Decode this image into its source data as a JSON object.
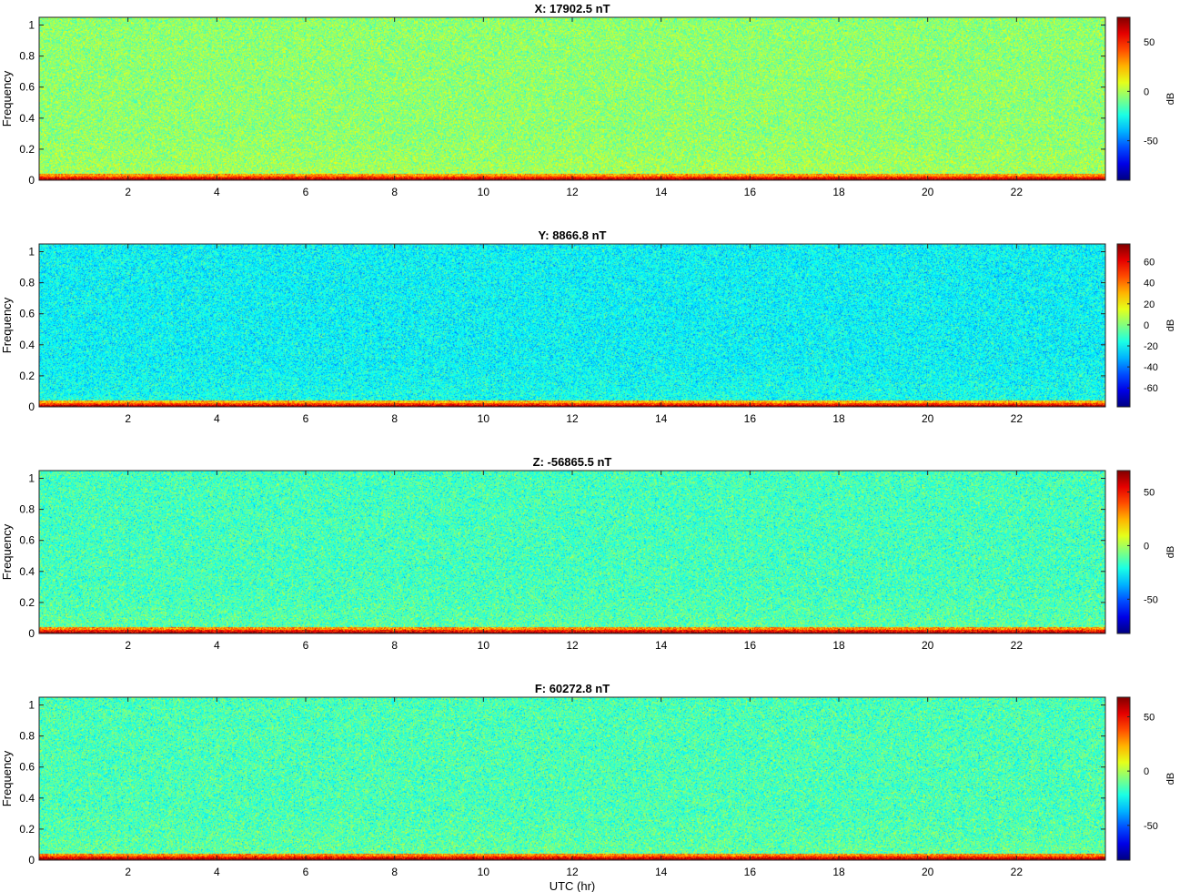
{
  "chart_data": [
    {
      "type": "heatmap",
      "title": "X: 17902.5 nT",
      "xlabel": "",
      "ylabel": "Frequency",
      "xticks": [
        2,
        4,
        6,
        8,
        10,
        12,
        14,
        16,
        18,
        20,
        22
      ],
      "yticks": [
        0,
        0.2,
        0.4,
        0.6,
        0.8,
        1
      ],
      "xlim": [
        0,
        24
      ],
      "ylim": [
        0,
        1.05
      ],
      "colorbar": {
        "label": "dB",
        "ticks": [
          -50,
          0,
          50
        ],
        "range": [
          -90,
          75
        ]
      },
      "colormap": "jet",
      "approx_levels_db": {
        "background": -5,
        "low_freq_band": 30,
        "lowest_freq": 70
      }
    },
    {
      "type": "heatmap",
      "title": "Y: 8866.8 nT",
      "xlabel": "",
      "ylabel": "Frequency",
      "xticks": [
        2,
        4,
        6,
        8,
        10,
        12,
        14,
        16,
        18,
        20,
        22
      ],
      "yticks": [
        0,
        0.2,
        0.4,
        0.6,
        0.8,
        1
      ],
      "xlim": [
        0,
        24
      ],
      "ylim": [
        0,
        1.05
      ],
      "colorbar": {
        "label": "dB",
        "ticks": [
          -60,
          -40,
          -20,
          0,
          20,
          40,
          60
        ],
        "range": [
          -78,
          77
        ]
      },
      "colormap": "jet",
      "approx_levels_db": {
        "background": -20,
        "low_freq_band": 30,
        "lowest_freq": 70
      }
    },
    {
      "type": "heatmap",
      "title": "Z: -56865.5 nT",
      "xlabel": "",
      "ylabel": "Frequency",
      "xticks": [
        2,
        4,
        6,
        8,
        10,
        12,
        14,
        16,
        18,
        20,
        22
      ],
      "yticks": [
        0,
        0.2,
        0.4,
        0.6,
        0.8,
        1
      ],
      "xlim": [
        0,
        24
      ],
      "ylim": [
        0,
        1.05
      ],
      "colorbar": {
        "label": "dB",
        "ticks": [
          -50,
          0,
          50
        ],
        "range": [
          -82,
          70
        ]
      },
      "colormap": "jet",
      "approx_levels_db": {
        "background": -15,
        "low_freq_band": 30,
        "lowest_freq": 65
      }
    },
    {
      "type": "heatmap",
      "title": "F: 60272.8 nT",
      "xlabel": "UTC (hr)",
      "ylabel": "Frequency",
      "xticks": [
        2,
        4,
        6,
        8,
        10,
        12,
        14,
        16,
        18,
        20,
        22
      ],
      "yticks": [
        0,
        0.2,
        0.4,
        0.6,
        0.8,
        1
      ],
      "xlim": [
        0,
        24
      ],
      "ylim": [
        0,
        1.05
      ],
      "colorbar": {
        "label": "dB",
        "ticks": [
          -50,
          0,
          50
        ],
        "range": [
          -82,
          68
        ]
      },
      "colormap": "jet",
      "approx_levels_db": {
        "background": -15,
        "low_freq_band": 30,
        "lowest_freq": 65
      }
    }
  ]
}
